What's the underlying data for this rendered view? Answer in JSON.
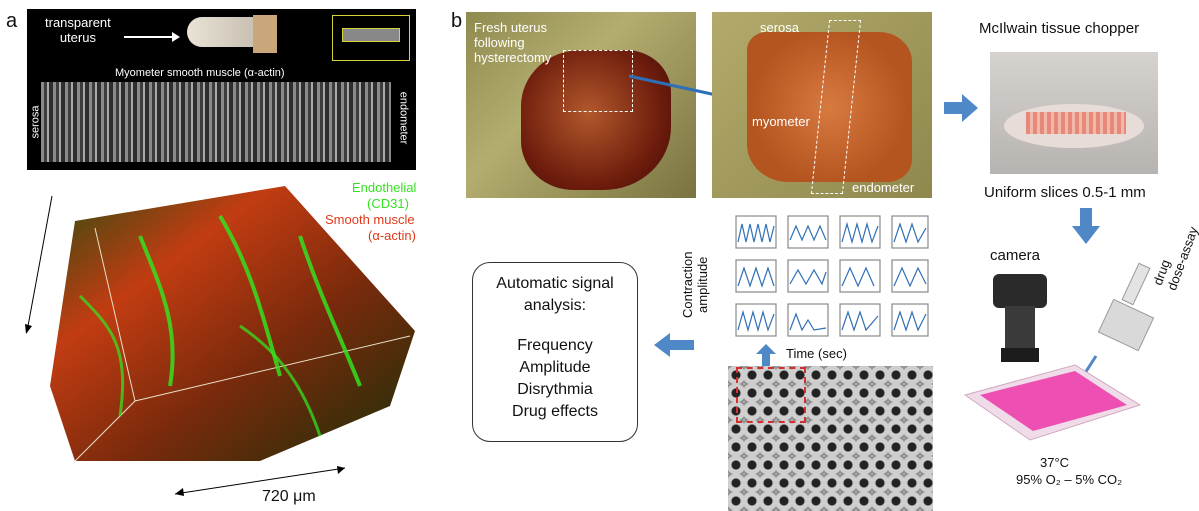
{
  "panel_a": {
    "letter": "a",
    "transparent_uterus": "transparent\nuterus",
    "myometer_title": "Myometer smooth muscle (α-actin)",
    "serosa": "serosa",
    "endometer": "endometer",
    "legend_endothelial": "Endothelial",
    "legend_cd31": "(CD31)",
    "legend_smooth": "Smooth muscle",
    "legend_alpha": "(α-actin)",
    "scale": "720 μm",
    "colors": {
      "green": "#34e21f",
      "red": "#e03a1a"
    }
  },
  "panel_b": {
    "letter": "b",
    "fresh_uterus": "Fresh uterus\nfollowing\nhysterectomy",
    "serosa": "serosa",
    "myometer": "myometer",
    "endometer": "endometer",
    "chopper": "McIlwain tissue chopper",
    "slices": "Uniform slices 0.5-1 mm",
    "camera": "camera",
    "drug": "drug\ndose-assay",
    "temp": "37°C",
    "gas": "95% O₂ – 5% CO₂",
    "contraction": "Contraction\namplitude",
    "time": "Time (sec)",
    "analysis_title": "Automatic signal\nanalysis:",
    "analysis_items": [
      "Frequency",
      "Amplitude",
      "Disrythmia",
      "Drug effects"
    ],
    "arrow_color": "#4f88c6"
  }
}
